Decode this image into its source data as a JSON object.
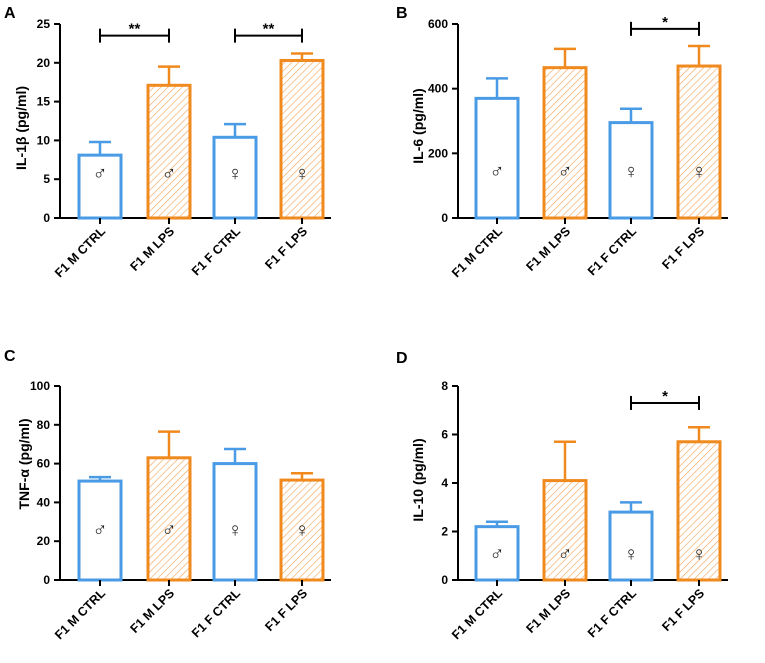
{
  "colors": {
    "control": "#4a9be6",
    "lps": "#f08a1e",
    "axis": "#000000"
  },
  "chart_data": [
    {
      "panel": "A",
      "type": "bar",
      "ylabel": "IL-1β (pg/ml)",
      "categories": [
        "F1 M CTRL",
        "F1 M LPS",
        "F1 F CTRL",
        "F1 F LPS"
      ],
      "values": [
        8.1,
        17.1,
        10.4,
        20.3
      ],
      "errors": [
        1.7,
        2.4,
        1.7,
        0.9
      ],
      "groups": [
        "control",
        "lps",
        "control",
        "lps"
      ],
      "sex_symbols": [
        "♂",
        "♂",
        "♀",
        "♀"
      ],
      "symbol_values": [
        5.8,
        5.8,
        5.8,
        5.8
      ],
      "ylim": [
        0,
        25
      ],
      "yticks": [
        0,
        5,
        10,
        15,
        20,
        25
      ],
      "significance": [
        {
          "from": 0,
          "to": 1,
          "label": "**",
          "y": 23.5
        },
        {
          "from": 2,
          "to": 3,
          "label": "**",
          "y": 23.5
        }
      ]
    },
    {
      "panel": "B",
      "type": "bar",
      "ylabel": "IL-6 (pg/ml)",
      "categories": [
        "F1 M CTRL",
        "F1 M LPS",
        "F1 F CTRL",
        "F1 F LPS"
      ],
      "values": [
        370,
        465,
        295,
        470
      ],
      "errors": [
        62,
        58,
        43,
        62
      ],
      "groups": [
        "control",
        "lps",
        "control",
        "lps"
      ],
      "sex_symbols": [
        "♂",
        "♂",
        "♀",
        "♀"
      ],
      "symbol_values": [
        145,
        145,
        145,
        145
      ],
      "ylim": [
        0,
        600
      ],
      "yticks": [
        0,
        200,
        400,
        600
      ],
      "significance": [
        {
          "from": 2,
          "to": 3,
          "label": "*",
          "y": 585
        }
      ]
    },
    {
      "panel": "C",
      "type": "bar",
      "ylabel": "TNF-α (pg/ml)",
      "categories": [
        "F1 M CTRL",
        "F1 M LPS",
        "F1 F CTRL",
        "F1 F LPS"
      ],
      "values": [
        51,
        63,
        60,
        51.5
      ],
      "errors": [
        2,
        13.5,
        7.5,
        3.5
      ],
      "groups": [
        "control",
        "lps",
        "control",
        "lps"
      ],
      "sex_symbols": [
        "♂",
        "♂",
        "♀",
        "♀"
      ],
      "symbol_values": [
        26,
        26,
        26,
        26
      ],
      "ylim": [
        0,
        100
      ],
      "yticks": [
        0,
        20,
        40,
        60,
        80,
        100
      ],
      "significance": []
    },
    {
      "panel": "D",
      "type": "bar",
      "ylabel": "IL-10 (pg/ml)",
      "categories": [
        "F1 M CTRL",
        "F1 M LPS",
        "F1 F CTRL",
        "F1 F LPS"
      ],
      "values": [
        2.2,
        4.1,
        2.8,
        5.7
      ],
      "errors": [
        0.2,
        1.6,
        0.4,
        0.6
      ],
      "groups": [
        "control",
        "lps",
        "control",
        "lps"
      ],
      "sex_symbols": [
        "♂",
        "♂",
        "♀",
        "♀"
      ],
      "symbol_values": [
        1.1,
        1.1,
        1.1,
        1.1
      ],
      "ylim": [
        0,
        8
      ],
      "yticks": [
        0,
        2,
        4,
        6,
        8
      ],
      "significance": [
        {
          "from": 2,
          "to": 3,
          "label": "*",
          "y": 7.3
        }
      ]
    }
  ]
}
